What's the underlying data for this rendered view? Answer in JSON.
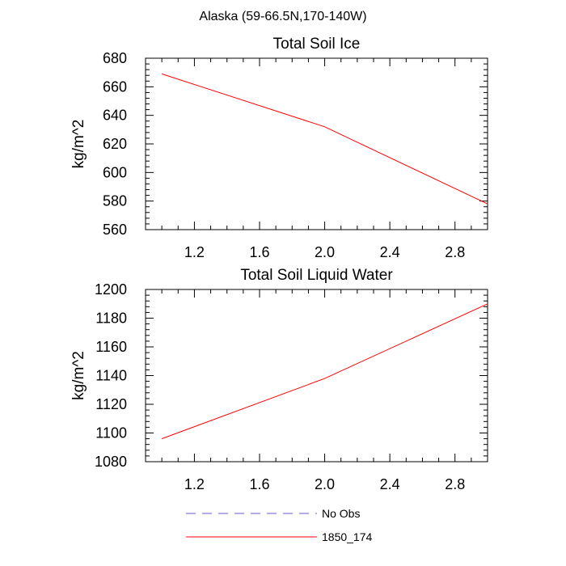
{
  "page_title": "Alaska (59-66.5N,170-140W)",
  "chart_data": [
    {
      "type": "line",
      "title": "Total Soil Ice",
      "xlabel": "",
      "ylabel": "kg/m^2",
      "xlim": [
        0.9,
        3.0
      ],
      "ylim": [
        560,
        680
      ],
      "xticks": [
        1.2,
        1.6,
        2.0,
        2.4,
        2.8
      ],
      "xtick_labels": [
        "1.2",
        "1.6",
        "2.0",
        "2.4",
        "2.8"
      ],
      "yticks": [
        560,
        580,
        600,
        620,
        640,
        660,
        680
      ],
      "ytick_labels": [
        "560",
        "580",
        "600",
        "620",
        "640",
        "660",
        "680"
      ],
      "grid": false,
      "series": [
        {
          "name": "1850_174",
          "color": "#ff0000",
          "x": [
            1,
            2,
            3
          ],
          "y": [
            669,
            632,
            578
          ]
        }
      ]
    },
    {
      "type": "line",
      "title": "Total Soil Liquid Water",
      "xlabel": "",
      "ylabel": "kg/m^2",
      "xlim": [
        0.9,
        3.0
      ],
      "ylim": [
        1080,
        1200
      ],
      "xticks": [
        1.2,
        1.6,
        2.0,
        2.4,
        2.8
      ],
      "xtick_labels": [
        "1.2",
        "1.6",
        "2.0",
        "2.4",
        "2.8"
      ],
      "yticks": [
        1080,
        1100,
        1120,
        1140,
        1160,
        1180,
        1200
      ],
      "ytick_labels": [
        "1080",
        "1100",
        "1120",
        "1140",
        "1160",
        "1180",
        "1200"
      ],
      "grid": false,
      "series": [
        {
          "name": "1850_174",
          "color": "#ff0000",
          "x": [
            1,
            2,
            3
          ],
          "y": [
            1096,
            1138,
            1190
          ]
        }
      ]
    }
  ],
  "legend": {
    "placement": "bottom-center",
    "items": [
      {
        "label": "No Obs",
        "color": "#6a5acd",
        "style": "dashed"
      },
      {
        "label": "1850_174",
        "color": "#ff0000",
        "style": "solid"
      }
    ]
  }
}
